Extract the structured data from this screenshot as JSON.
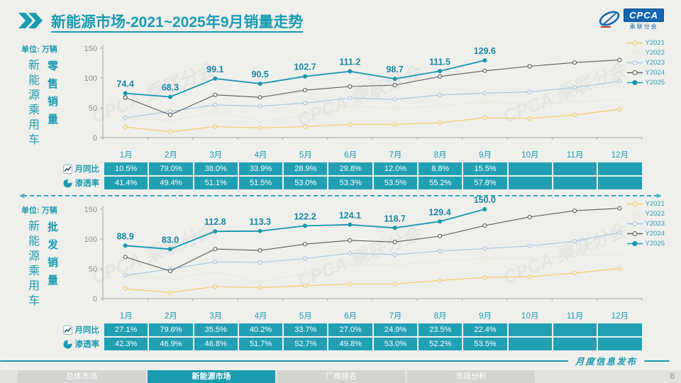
{
  "header": {
    "title_strong": "新能源市场",
    "title_rest": "-2021~2025年9月销量走势",
    "logo_text": "CPCA",
    "logo_sub": "乘联分会"
  },
  "months": [
    "1月",
    "2月",
    "3月",
    "4月",
    "5月",
    "6月",
    "7月",
    "8月",
    "9月",
    "10月",
    "11月",
    "12月"
  ],
  "legend": [
    "Y2021",
    "Y2022",
    "Y2023",
    "Y2024",
    "Y2025"
  ],
  "colors": {
    "accent": "#1a9bb0",
    "table_cell": "#219fb3",
    "axis": "#a3a3a3",
    "data_label": "#1787a4",
    "series": {
      "Y2021": "#f2cd5e",
      "Y2022": "#e4ecd7",
      "Y2023": "#a6c3de",
      "Y2024": "#5b5b5b",
      "Y2025": "#1697ad"
    }
  },
  "sections": [
    {
      "unit_label": "单位: 万辆",
      "group_label": "新能源乘用车",
      "metric_label": "零售销量",
      "table_rows": [
        {
          "label": "月同比",
          "icon": "line-chart-icon",
          "values": [
            "10.5%",
            "79.0%",
            "38.0%",
            "33.9%",
            "28.9%",
            "29.8%",
            "12.0%",
            "8.8%",
            "15.5%",
            "",
            "",
            ""
          ]
        },
        {
          "label": "渗透率",
          "icon": "pie-chart-icon",
          "values": [
            "41.4%",
            "49.4%",
            "51.1%",
            "51.5%",
            "53.0%",
            "53.3%",
            "53.5%",
            "55.2%",
            "57.8%",
            "",
            "",
            ""
          ]
        }
      ]
    },
    {
      "unit_label": "单位: 万辆",
      "group_label": "新能源乘用车",
      "metric_label": "批发销量",
      "table_rows": [
        {
          "label": "月同比",
          "icon": "line-chart-icon",
          "values": [
            "27.1%",
            "79.6%",
            "35.5%",
            "40.2%",
            "33.7%",
            "27.0%",
            "24.9%",
            "23.5%",
            "22.4%",
            "",
            "",
            ""
          ]
        },
        {
          "label": "渗透率",
          "icon": "pie-chart-icon",
          "values": [
            "42.3%",
            "46.9%",
            "46.8%",
            "51.7%",
            "52.7%",
            "49.8%",
            "53.0%",
            "52.2%",
            "53.5%",
            "",
            "",
            ""
          ]
        }
      ]
    }
  ],
  "chart_data": [
    {
      "type": "line",
      "title": "新能源乘用车零售销量",
      "ylabel": "万辆",
      "ylim": [
        0,
        150
      ],
      "yticks": [
        0,
        50,
        100,
        150
      ],
      "grid": false,
      "legend_position": "right",
      "categories": [
        "1月",
        "2月",
        "3月",
        "4月",
        "5月",
        "6月",
        "7月",
        "8月",
        "9月",
        "10月",
        "11月",
        "12月"
      ],
      "series": [
        {
          "name": "Y2021",
          "values": [
            17.9,
            9.7,
            18.5,
            16.3,
            18.5,
            22.3,
            22.2,
            24.9,
            33.4,
            32.1,
            37.8,
            47.5
          ]
        },
        {
          "name": "Y2022",
          "values": [
            34.7,
            27.2,
            44.5,
            28.2,
            36.0,
            53.2,
            48.6,
            52.9,
            61.1,
            55.6,
            59.8,
            64.0
          ]
        },
        {
          "name": "Y2023",
          "values": [
            33.2,
            43.9,
            54.9,
            52.7,
            58.0,
            66.5,
            64.1,
            71.6,
            74.6,
            76.7,
            84.1,
            94.5
          ]
        },
        {
          "name": "Y2024",
          "values": [
            67.3,
            38.2,
            71.8,
            67.6,
            79.7,
            85.7,
            88.1,
            102.5,
            112.2,
            119.6,
            125.9,
            130.2
          ]
        },
        {
          "name": "Y2025",
          "values": [
            74.4,
            68.3,
            99.1,
            90.5,
            102.7,
            111.2,
            98.7,
            111.5,
            129.6
          ],
          "labeled": true
        }
      ]
    },
    {
      "type": "line",
      "title": "新能源乘用车批发销量",
      "ylabel": "万辆",
      "ylim": [
        0,
        150
      ],
      "yticks": [
        0,
        50,
        100,
        150
      ],
      "grid": false,
      "legend_position": "right",
      "categories": [
        "1月",
        "2月",
        "3月",
        "4月",
        "5月",
        "6月",
        "7月",
        "8月",
        "9月",
        "10月",
        "11月",
        "12月"
      ],
      "series": [
        {
          "name": "Y2021",
          "values": [
            16.8,
            10.0,
            20.2,
            18.4,
            21.7,
            24.5,
            24.6,
            30.4,
            35.5,
            36.8,
            42.9,
            50.5
          ]
        },
        {
          "name": "Y2022",
          "values": [
            41.2,
            31.7,
            45.5,
            28.0,
            42.1,
            57.1,
            56.4,
            63.2,
            67.5,
            67.6,
            72.8,
            75.0
          ]
        },
        {
          "name": "Y2023",
          "values": [
            38.9,
            49.6,
            61.7,
            60.7,
            67.3,
            76.1,
            73.7,
            79.8,
            83.9,
            88.3,
            96.2,
            110.8
          ]
        },
        {
          "name": "Y2024",
          "values": [
            69.9,
            46.2,
            83.2,
            80.8,
            91.4,
            97.7,
            95.0,
            104.8,
            122.5,
            137.0,
            147.5,
            151.5
          ]
        },
        {
          "name": "Y2025",
          "values": [
            88.9,
            83.0,
            112.8,
            113.3,
            122.2,
            124.1,
            118.7,
            129.4,
            150.0
          ],
          "labeled": true
        }
      ]
    }
  ],
  "footer": {
    "tabs": [
      {
        "label": "总体市场",
        "active": false
      },
      {
        "label": "新能源市场",
        "active": true
      },
      {
        "label": "厂商排名",
        "active": false
      },
      {
        "label": "市场分析",
        "active": false
      }
    ],
    "right_label": "月度信息发布",
    "page": "8"
  },
  "watermark": "CPCA 乘联分会"
}
